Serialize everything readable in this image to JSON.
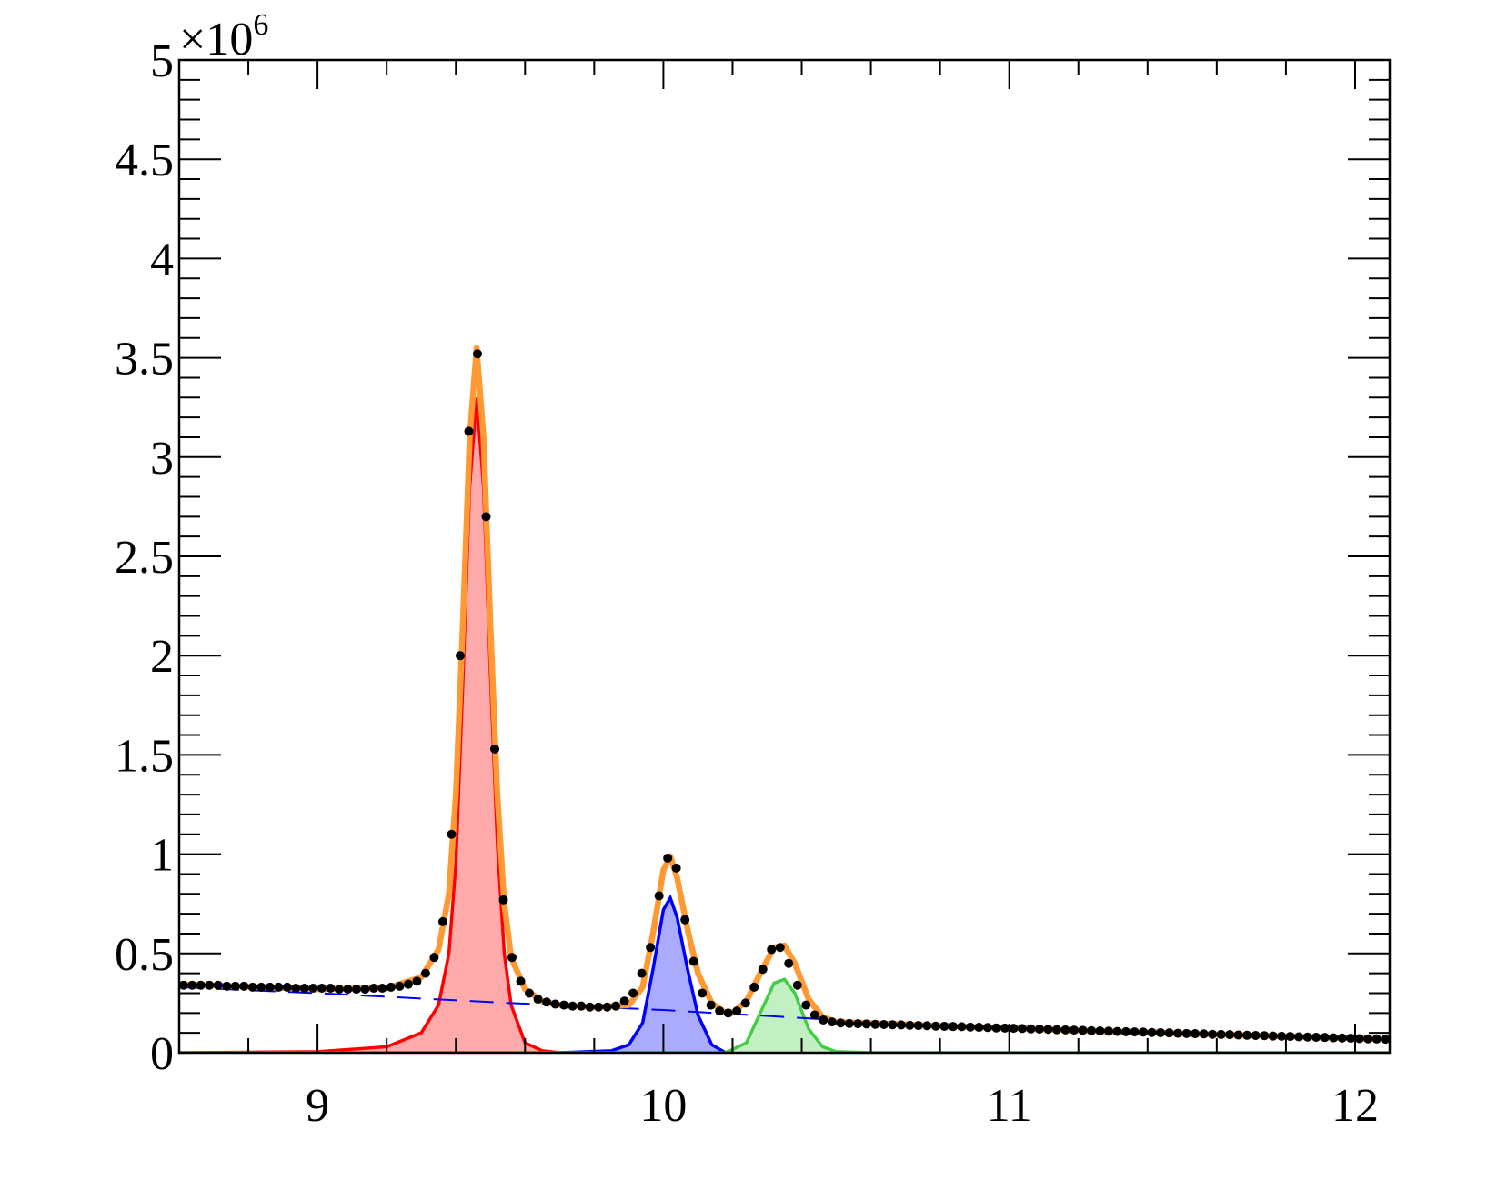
{
  "chart_data": {
    "type": "line",
    "xlim": [
      8.6,
      12.1
    ],
    "xticks": [
      9,
      10,
      11,
      12
    ],
    "ylim": [
      0,
      5
    ],
    "yticks": [
      0,
      0.5,
      1,
      1.5,
      2,
      2.5,
      3,
      3.5,
      4,
      4.5,
      5
    ],
    "y_multiplier": "×10",
    "y_multiplier_exponent": "6",
    "series": [
      {
        "style": "filled",
        "color": "#ff0000",
        "fill": "#ffaaaa",
        "x": [
          8.6,
          9.0,
          9.2,
          9.3,
          9.35,
          9.38,
          9.4,
          9.42,
          9.44,
          9.46,
          9.48,
          9.5,
          9.52,
          9.54,
          9.56,
          9.6,
          9.65,
          9.7
        ],
        "values": [
          0,
          0.005,
          0.03,
          0.1,
          0.24,
          0.5,
          0.95,
          1.85,
          2.85,
          3.3,
          2.85,
          1.9,
          1.05,
          0.5,
          0.24,
          0.05,
          0.01,
          0
        ]
      },
      {
        "style": "filled",
        "color": "#0000ff",
        "fill": "#aaaaff",
        "x": [
          9.7,
          9.85,
          9.9,
          9.94,
          9.97,
          10.0,
          10.02,
          10.04,
          10.07,
          10.1,
          10.14,
          10.18
        ],
        "values": [
          0,
          0.01,
          0.04,
          0.15,
          0.42,
          0.72,
          0.78,
          0.68,
          0.42,
          0.19,
          0.04,
          0
        ]
      },
      {
        "style": "filled",
        "color": "#44cc44",
        "fill": "#c2f0c2",
        "x": [
          8.6,
          10.18,
          10.24,
          10.28,
          10.32,
          10.35,
          10.38,
          10.42,
          10.46,
          10.5,
          10.6,
          12.1
        ],
        "values": [
          0,
          0,
          0.05,
          0.2,
          0.35,
          0.37,
          0.3,
          0.12,
          0.03,
          0.005,
          0,
          0
        ]
      },
      {
        "style": "dashed",
        "color": "#0000ff",
        "x": [
          8.6,
          9.0,
          9.5,
          10.0,
          10.5,
          11.0,
          11.5,
          12.1
        ],
        "values": [
          0.33,
          0.3,
          0.255,
          0.215,
          0.165,
          0.12,
          0.097,
          0.068
        ]
      },
      {
        "style": "line",
        "color": "#ff9933",
        "x": [
          8.6,
          9.0,
          9.2,
          9.3,
          9.35,
          9.38,
          9.4,
          9.42,
          9.44,
          9.46,
          9.48,
          9.5,
          9.52,
          9.54,
          9.56,
          9.6,
          9.65,
          9.7,
          9.8,
          9.9,
          9.94,
          9.97,
          10.0,
          10.02,
          10.04,
          10.07,
          10.1,
          10.14,
          10.18,
          10.2,
          10.24,
          10.28,
          10.32,
          10.35,
          10.38,
          10.42,
          10.46,
          10.5,
          11.0,
          11.5,
          12.1
        ],
        "values": [
          0.345,
          0.32,
          0.325,
          0.38,
          0.52,
          0.8,
          1.3,
          2.15,
          3.1,
          3.55,
          3.1,
          2.15,
          1.3,
          0.75,
          0.48,
          0.32,
          0.26,
          0.24,
          0.23,
          0.24,
          0.33,
          0.6,
          0.92,
          0.99,
          0.88,
          0.62,
          0.4,
          0.25,
          0.2,
          0.2,
          0.26,
          0.4,
          0.53,
          0.54,
          0.45,
          0.27,
          0.18,
          0.155,
          0.123,
          0.097,
          0.068
        ]
      },
      {
        "style": "points",
        "color": "#000000",
        "x": [
          8.6125,
          8.6375,
          8.6625,
          8.6875,
          8.7125,
          8.7375,
          8.7625,
          8.7875,
          8.8125,
          8.8375,
          8.8625,
          8.8875,
          8.9125,
          8.9375,
          8.9625,
          8.9875,
          9.0125,
          9.0375,
          9.0625,
          9.0875,
          9.1125,
          9.1375,
          9.1625,
          9.1875,
          9.2125,
          9.2375,
          9.2625,
          9.2875,
          9.3125,
          9.3375,
          9.3625,
          9.3875,
          9.4125,
          9.4375,
          9.4625,
          9.4875,
          9.5125,
          9.5375,
          9.5625,
          9.5875,
          9.6125,
          9.6375,
          9.6625,
          9.6875,
          9.7125,
          9.7375,
          9.7625,
          9.7875,
          9.8125,
          9.8375,
          9.8625,
          9.8875,
          9.9125,
          9.9375,
          9.9625,
          9.9875,
          10.0125,
          10.0375,
          10.0625,
          10.0875,
          10.1125,
          10.1375,
          10.1625,
          10.1875,
          10.2125,
          10.2375,
          10.2625,
          10.2875,
          10.3125,
          10.3375,
          10.3625,
          10.3875,
          10.4125,
          10.4375,
          10.4625,
          10.4875,
          10.5125,
          10.5375,
          10.5625,
          10.5875,
          10.6125,
          10.6375,
          10.6625,
          10.6875,
          10.7125,
          10.7375,
          10.7625,
          10.7875,
          10.8125,
          10.8375,
          10.8625,
          10.8875,
          10.9125,
          10.9375,
          10.9625,
          10.9875,
          11.0125,
          11.0375,
          11.0625,
          11.0875,
          11.1125,
          11.1375,
          11.1625,
          11.1875,
          11.2125,
          11.2375,
          11.2625,
          11.2875,
          11.3125,
          11.3375,
          11.3625,
          11.3875,
          11.4125,
          11.4375,
          11.4625,
          11.4875,
          11.5125,
          11.5375,
          11.5625,
          11.5875,
          11.6125,
          11.6375,
          11.6625,
          11.6875,
          11.7125,
          11.7375,
          11.7625,
          11.7875,
          11.8125,
          11.8375,
          11.8625,
          11.8875,
          11.9125,
          11.9375,
          11.9625,
          11.9875,
          12.0125,
          12.0375,
          12.0625,
          12.0875
        ],
        "values": [
          0.34,
          0.34,
          0.34,
          0.34,
          0.34,
          0.335,
          0.335,
          0.335,
          0.33,
          0.33,
          0.33,
          0.33,
          0.33,
          0.325,
          0.325,
          0.325,
          0.325,
          0.325,
          0.32,
          0.32,
          0.32,
          0.32,
          0.325,
          0.325,
          0.33,
          0.335,
          0.345,
          0.36,
          0.4,
          0.48,
          0.66,
          1.1,
          2.0,
          3.13,
          3.52,
          2.7,
          1.53,
          0.77,
          0.48,
          0.36,
          0.3,
          0.27,
          0.255,
          0.245,
          0.24,
          0.235,
          0.235,
          0.23,
          0.23,
          0.23,
          0.235,
          0.26,
          0.3,
          0.4,
          0.53,
          0.79,
          0.98,
          0.93,
          0.67,
          0.46,
          0.3,
          0.24,
          0.21,
          0.2,
          0.21,
          0.25,
          0.33,
          0.42,
          0.52,
          0.53,
          0.45,
          0.34,
          0.24,
          0.19,
          0.165,
          0.155,
          0.15,
          0.147,
          0.146,
          0.145,
          0.143,
          0.142,
          0.141,
          0.14,
          0.138,
          0.137,
          0.136,
          0.134,
          0.133,
          0.132,
          0.131,
          0.129,
          0.128,
          0.127,
          0.125,
          0.124,
          0.123,
          0.122,
          0.12,
          0.119,
          0.118,
          0.116,
          0.115,
          0.114,
          0.113,
          0.111,
          0.11,
          0.109,
          0.107,
          0.106,
          0.105,
          0.104,
          0.102,
          0.101,
          0.1,
          0.098,
          0.097,
          0.096,
          0.095,
          0.093,
          0.092,
          0.091,
          0.089,
          0.088,
          0.087,
          0.086,
          0.084,
          0.083,
          0.082,
          0.08,
          0.079,
          0.078,
          0.077,
          0.075,
          0.074,
          0.073,
          0.071,
          0.07,
          0.069,
          0.068
        ]
      }
    ]
  }
}
